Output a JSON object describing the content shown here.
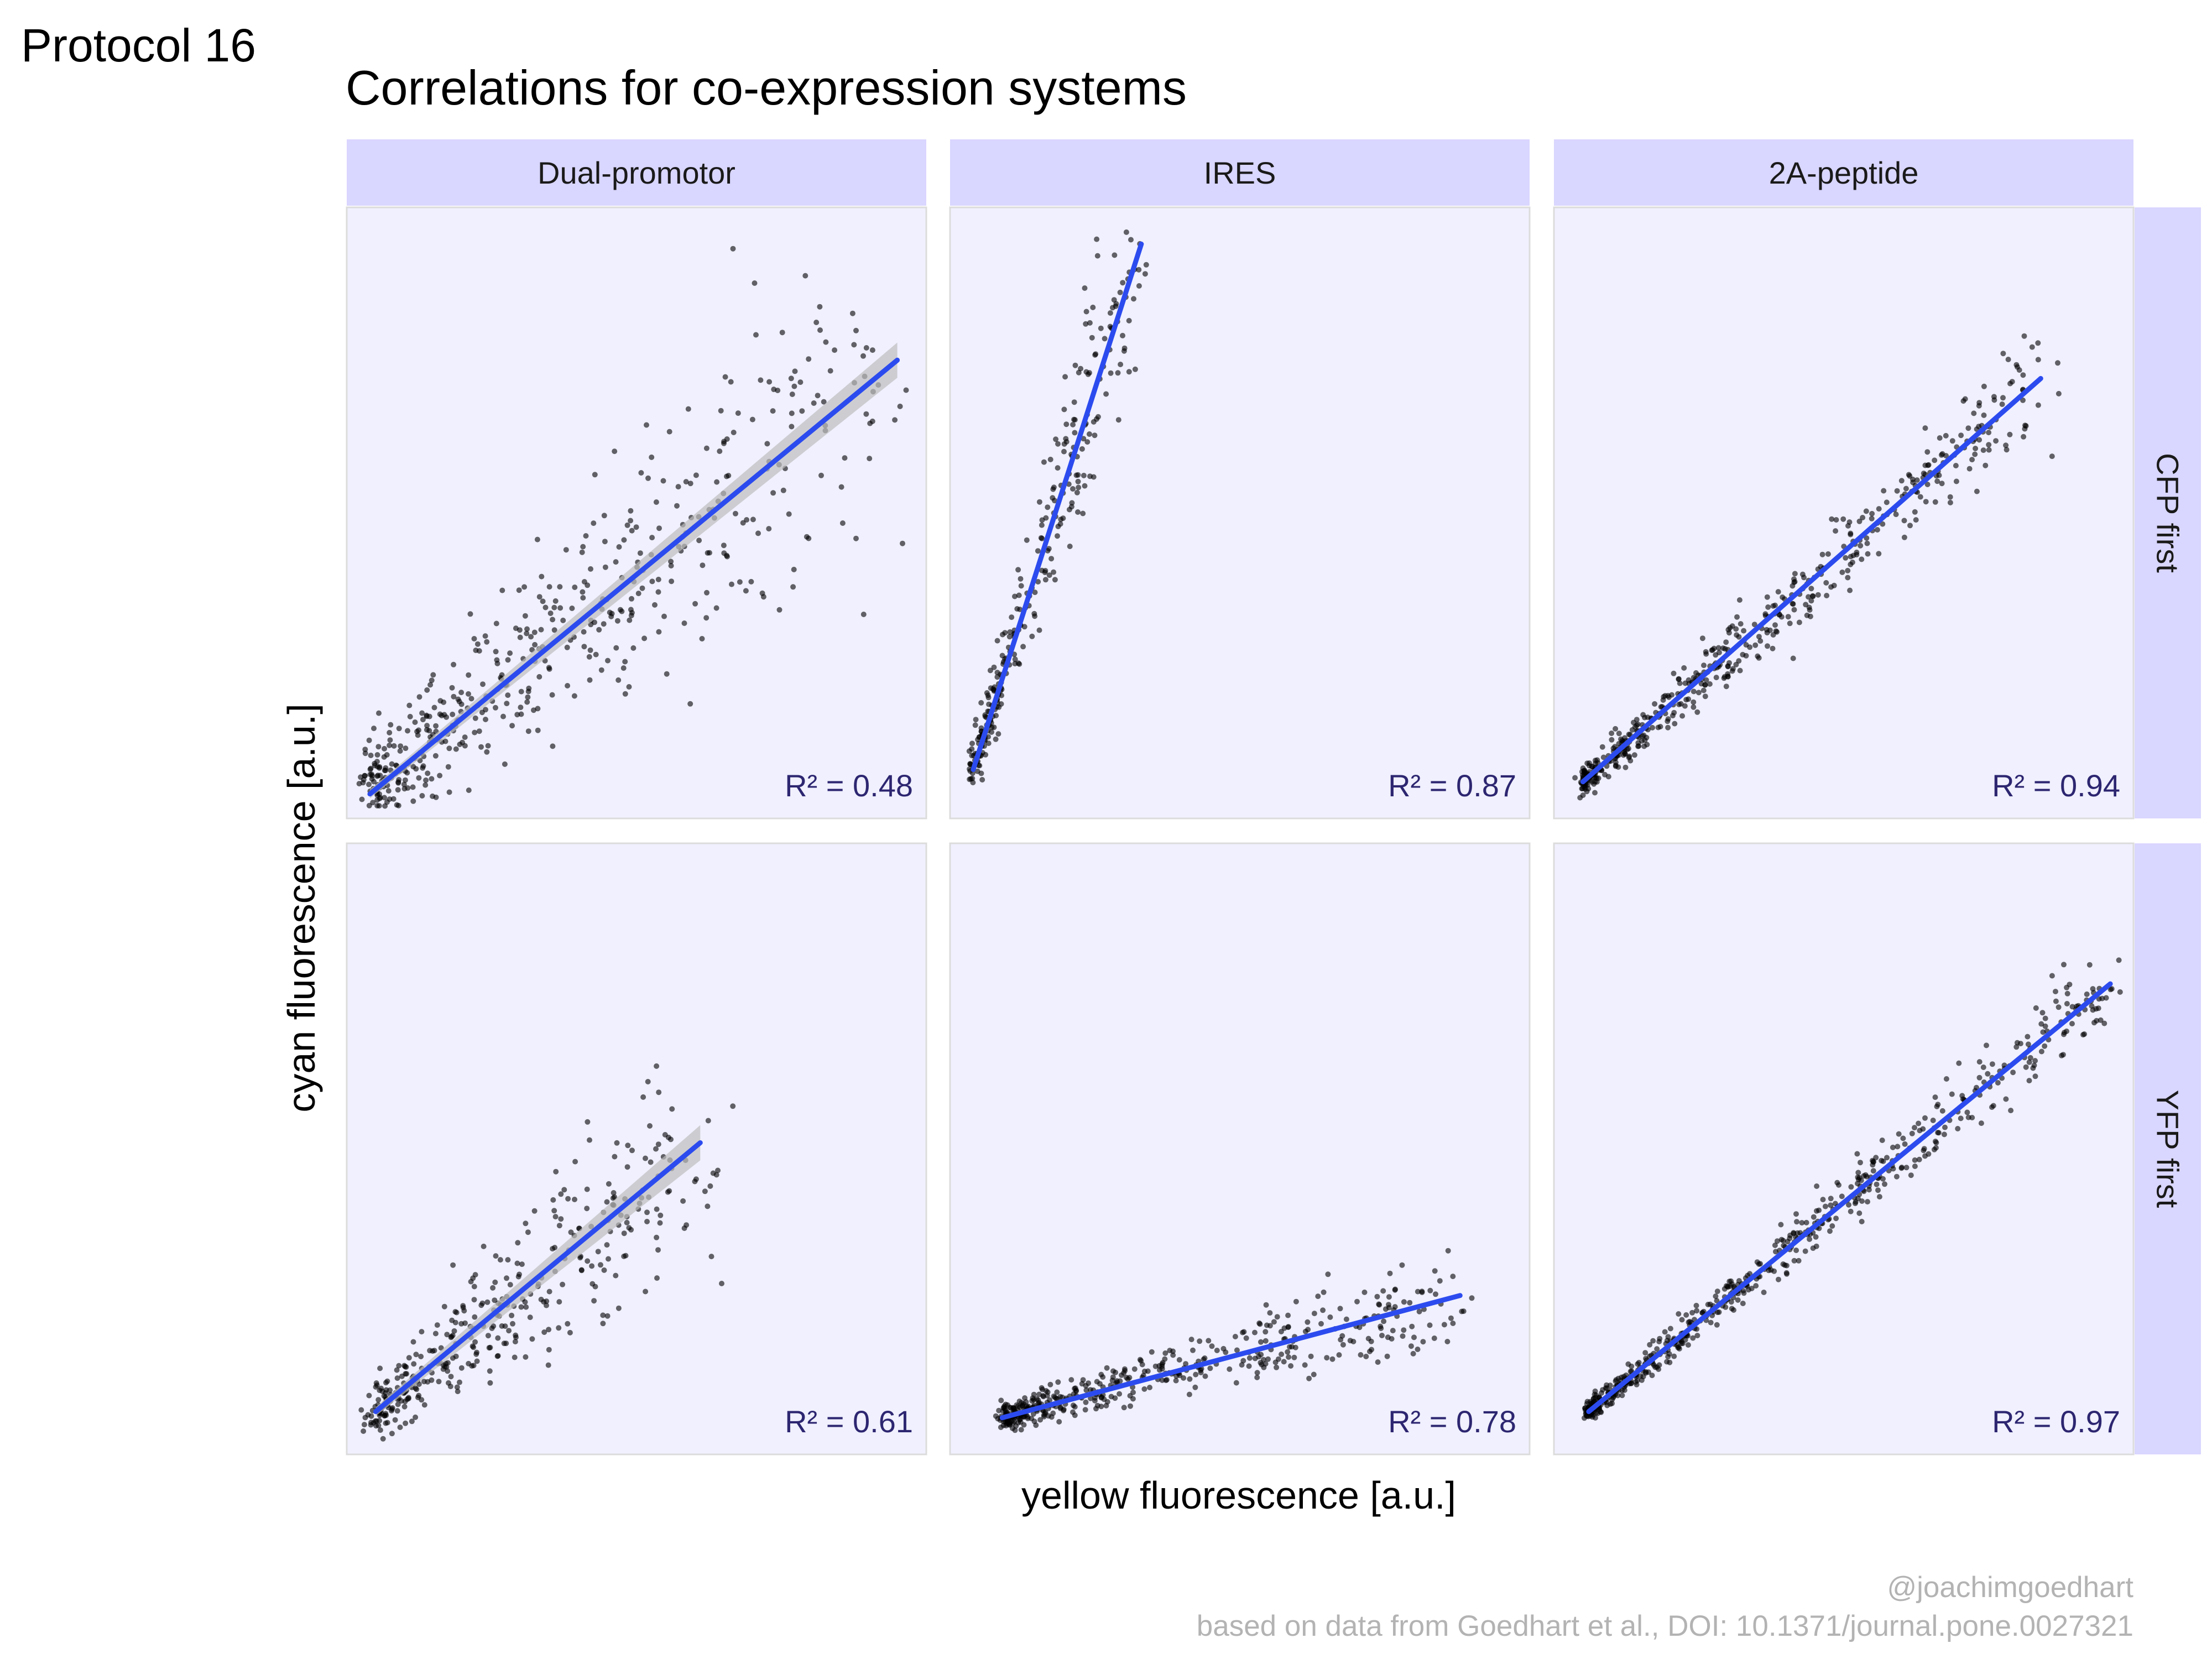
{
  "header": {
    "protocol": "Protocol 16",
    "title": "Correlations for co-expression systems"
  },
  "axes": {
    "xlabel": "yellow fluorescence [a.u.]",
    "ylabel": "cyan fluorescence [a.u.]"
  },
  "caption": {
    "handle": "@joachimgoedhart",
    "source": "based on data from Goedhart et al., DOI: 10.1371/journal.pone.0027321"
  },
  "colors": {
    "panel_bg": "#f0f0ff",
    "strip_bg": "#d9d6ff",
    "fit_line": "#2c4bef",
    "confidence_band": "#bdbdbd",
    "points": "#000000",
    "r2_label": "#2d2670"
  },
  "chart_data": {
    "type": "scatter",
    "facet_columns": [
      "Dual-promotor",
      "IRES",
      "2A-peptide"
    ],
    "facet_rows": [
      "CFP first",
      "YFP first"
    ],
    "axis_ticks_shown": false,
    "panels": [
      {
        "column": "Dual-promotor",
        "row": "CFP first",
        "r2_label": "R² = 0.48",
        "r2": 0.48,
        "fit": {
          "x": [
            0.04,
            0.95
          ],
          "y": [
            0.04,
            0.75
          ]
        },
        "band": true
      },
      {
        "column": "IRES",
        "row": "CFP first",
        "r2_label": "R² = 0.87",
        "r2": 0.87,
        "fit": {
          "x": [
            0.04,
            0.33
          ],
          "y": [
            0.08,
            0.94
          ]
        },
        "band": false
      },
      {
        "column": "2A-peptide",
        "row": "CFP first",
        "r2_label": "R² = 0.94",
        "r2": 0.94,
        "fit": {
          "x": [
            0.05,
            0.84
          ],
          "y": [
            0.06,
            0.72
          ]
        },
        "band": false
      },
      {
        "column": "Dual-promotor",
        "row": "YFP first",
        "r2_label": "R² = 0.61",
        "r2": 0.61,
        "fit": {
          "x": [
            0.05,
            0.61
          ],
          "y": [
            0.07,
            0.51
          ]
        },
        "band": true
      },
      {
        "column": "IRES",
        "row": "YFP first",
        "r2_label": "R² = 0.78",
        "r2": 0.78,
        "fit": {
          "x": [
            0.09,
            0.88
          ],
          "y": [
            0.06,
            0.26
          ]
        },
        "band": false
      },
      {
        "column": "2A-peptide",
        "row": "YFP first",
        "r2_label": "R² = 0.97",
        "r2": 0.97,
        "fit": {
          "x": [
            0.06,
            0.96
          ],
          "y": [
            0.07,
            0.77
          ]
        },
        "band": false
      }
    ]
  }
}
